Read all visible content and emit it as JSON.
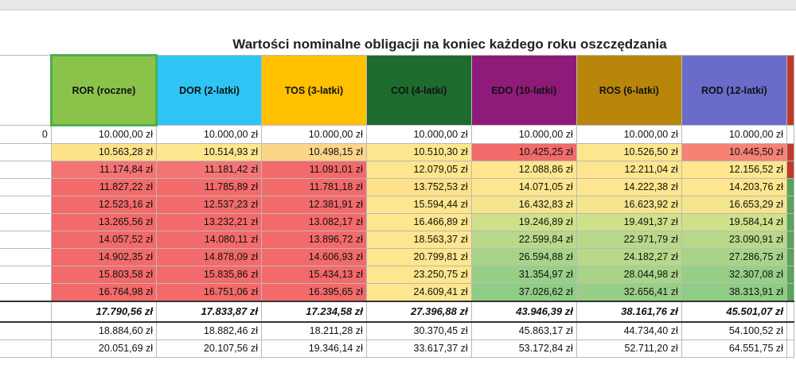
{
  "title": "Wartości nominalne obligacji na koniec każdego roku oszczędzania",
  "columns": [
    {
      "label": "ROR (roczne)",
      "key": "ror"
    },
    {
      "label": "DOR (2-latki)",
      "key": "dor"
    },
    {
      "label": "TOS (3-latki)",
      "key": "tos"
    },
    {
      "label": "COI (4-latki)",
      "key": "coi"
    },
    {
      "label": "EDO (10-latki)",
      "key": "edo"
    },
    {
      "label": "ROS (6-latki)",
      "key": "ros"
    },
    {
      "label": "ROD (12-latki)",
      "key": "rod"
    }
  ],
  "colors": {
    "ror": "#8bc34a",
    "dor": "#2ec5f5",
    "tos": "#ffc000",
    "coi": "#1e6b2e",
    "edo": "#8e1b79",
    "ros": "#b8860b",
    "rod": "#6b6bc9"
  },
  "rows": [
    {
      "label": "0",
      "values": [
        "10.000,00 zł",
        "10.000,00 zł",
        "10.000,00 zł",
        "10.000,00 zł",
        "10.000,00 zł",
        "10.000,00 zł",
        "10.000,00 zł"
      ],
      "bg": [
        "#ffffff",
        "#ffffff",
        "#ffffff",
        "#ffffff",
        "#ffffff",
        "#ffffff",
        "#ffffff"
      ],
      "edge": "white"
    },
    {
      "label": "",
      "values": [
        "10.563,28 zł",
        "10.514,93 zł",
        "10.498,15 zł",
        "10.510,30 zł",
        "10.425,25 zł",
        "10.526,50 zł",
        "10.445,50 zł"
      ],
      "bg": [
        "#fde28a",
        "#fde68d",
        "#fbd58a",
        "#fde68d",
        "#f26b6b",
        "#fde68d",
        "#f58274"
      ],
      "edge": "red"
    },
    {
      "label": "",
      "values": [
        "11.174,84 zł",
        "11.181,42 zł",
        "11.091,01 zł",
        "12.079,05 zł",
        "12.088,86 zł",
        "12.211,04 zł",
        "12.156,52 zł"
      ],
      "bg": [
        "#f47474",
        "#f47474",
        "#f36a6a",
        "#fde68d",
        "#fde68d",
        "#fde68d",
        "#fde68d"
      ],
      "edge": "red"
    },
    {
      "label": "",
      "values": [
        "11.827,22 zł",
        "11.785,89 zł",
        "11.781,18 zł",
        "13.752,53 zł",
        "14.071,05 zł",
        "14.222,38 zł",
        "14.203,76 zł"
      ],
      "bg": [
        "#f36a6a",
        "#f36a6a",
        "#f36a6a",
        "#fde28a",
        "#fde68d",
        "#fde68d",
        "#fde68d"
      ],
      "edge": "green"
    },
    {
      "label": "",
      "values": [
        "12.523,16 zł",
        "12.537,23 zł",
        "12.381,91 zł",
        "15.594,44 zł",
        "16.432,83 zł",
        "16.623,92 zł",
        "16.653,29 zł"
      ],
      "bg": [
        "#f36a6a",
        "#f36a6a",
        "#f36a6a",
        "#fde68d",
        "#f4e58c",
        "#f4e58c",
        "#f4e58c"
      ],
      "edge": "green"
    },
    {
      "label": "",
      "values": [
        "13.265,56 zł",
        "13.232,21 zł",
        "13.082,17 zł",
        "16.466,89 zł",
        "19.246,89 zł",
        "19.491,37 zł",
        "19.584,14 zł"
      ],
      "bg": [
        "#f36a6a",
        "#f36a6a",
        "#f36a6a",
        "#fde68d",
        "#cfe08a",
        "#cfe08a",
        "#cfe08a"
      ],
      "edge": "green"
    },
    {
      "label": "",
      "values": [
        "14.057,52 zł",
        "14.080,11 zł",
        "13.896,72 zł",
        "18.563,37 zł",
        "22.599,84 zł",
        "22.971,79 zł",
        "23.090,91 zł"
      ],
      "bg": [
        "#f36a6a",
        "#f36a6a",
        "#f36a6a",
        "#fde68d",
        "#b8d88a",
        "#b8d88a",
        "#b8d88a"
      ],
      "edge": "green"
    },
    {
      "label": "",
      "values": [
        "14.902,35 zł",
        "14.878,09 zł",
        "14.606,93 zł",
        "20.799,81 zł",
        "26.594,88 zł",
        "24.182,27 zł",
        "27.286,75 zł"
      ],
      "bg": [
        "#f36a6a",
        "#f36a6a",
        "#f36a6a",
        "#fde68d",
        "#a8d488",
        "#b8d88a",
        "#a8d488"
      ],
      "edge": "green"
    },
    {
      "label": "",
      "values": [
        "15.803,58 zł",
        "15.835,86 zł",
        "15.434,13 zł",
        "23.250,75 zł",
        "31.354,97 zł",
        "28.044,98 zł",
        "32.307,08 zł"
      ],
      "bg": [
        "#f36a6a",
        "#f36a6a",
        "#f36a6a",
        "#fde68d",
        "#98cf86",
        "#a8d488",
        "#98cf86"
      ],
      "edge": "green"
    },
    {
      "label": "",
      "values": [
        "16.764,98 zł",
        "16.751,06 zł",
        "16.395,65 zł",
        "24.609,41 zł",
        "37.026,62 zł",
        "32.656,41 zł",
        "38.313,91 zł"
      ],
      "bg": [
        "#f36a6a",
        "#f36a6a",
        "#f36a6a",
        "#fde68d",
        "#8fcc84",
        "#98cf86",
        "#8fcc84"
      ],
      "edge": "green"
    }
  ],
  "total_row": {
    "label": "",
    "values": [
      "17.790,56 zł",
      "17.833,87 zł",
      "17.234,58 zł",
      "27.396,88 zł",
      "43.946,39 zł",
      "38.161,76 zł",
      "45.501,07 zł"
    ]
  },
  "extra_rows": [
    {
      "label": "",
      "values": [
        "18.884,60 zł",
        "18.882,46 zł",
        "18.211,28 zł",
        "30.370,45 zł",
        "45.863,17 zł",
        "44.734,40 zł",
        "54.100,52 zł"
      ]
    },
    {
      "label": "",
      "values": [
        "20.051,69 zł",
        "20.107,56 zł",
        "19.346,14 zł",
        "33.617,37 zł",
        "53.172,84 zł",
        "52.711,20 zł",
        "64.551,75 zł"
      ]
    }
  ]
}
